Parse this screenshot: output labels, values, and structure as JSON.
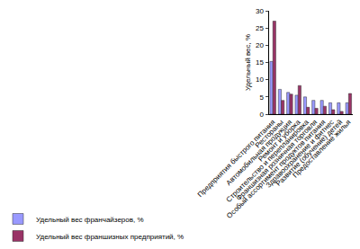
{
  "chart_data": {
    "type": "bar",
    "y_label": "Удельный вес, %",
    "categories": [
      "Предприятия быстрого питания",
      "Рестораны",
      "Автомобильная продукция",
      "Ремонт и уборка",
      "Строительство и перепланировка",
      "Франшизная розничная торговля",
      "Особый ассортимент продуктов питания",
      "Здравоохранение и фитнес",
      "Развитие (обучение) детей",
      "Предоставление жилья"
    ],
    "series": [
      {
        "name": "Удельный вес франчайзеров, %",
        "color": "#9999ff",
        "values": [
          15.3,
          7.2,
          6.3,
          5.5,
          5.0,
          4.0,
          4.0,
          3.3,
          3.3,
          3.3
        ]
      },
      {
        "name": "Удельный вес франшизных предприятий, %",
        "color": "#993366",
        "values": [
          27.0,
          4.0,
          5.8,
          8.3,
          2.0,
          1.7,
          2.3,
          1.3,
          0.8,
          6.0
        ]
      }
    ],
    "ylim": [
      0,
      30
    ],
    "yticks": [
      0,
      5,
      10,
      15,
      20,
      25,
      30
    ],
    "grid": false,
    "legend": "bottom"
  }
}
